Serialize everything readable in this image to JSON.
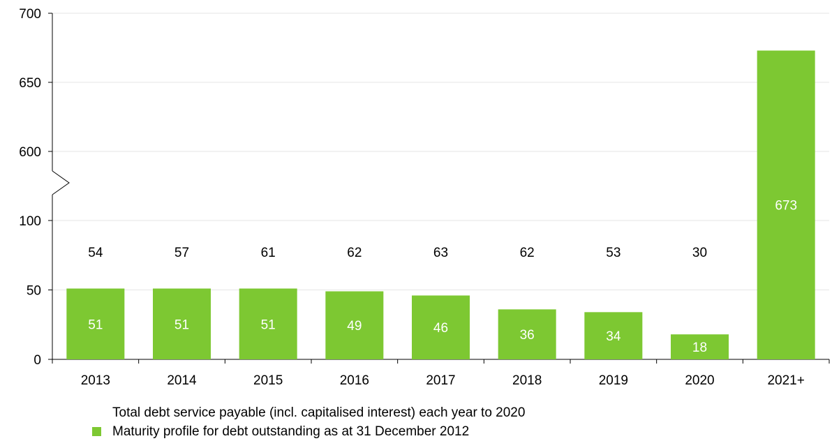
{
  "chart_data": {
    "type": "bar",
    "categories": [
      "2013",
      "2014",
      "2015",
      "2016",
      "2017",
      "2018",
      "2019",
      "2020",
      "2021+"
    ],
    "series": [
      {
        "name": "Maturity profile for debt outstanding as at 31 December 2012",
        "values": [
          51,
          51,
          51,
          49,
          46,
          36,
          34,
          18,
          673
        ],
        "color": "#7dc832"
      },
      {
        "name": "Total debt service payable (incl. capitalised interest) each year to 2020",
        "values": [
          54,
          57,
          61,
          62,
          63,
          62,
          53,
          30,
          null
        ],
        "display": "text-only"
      }
    ],
    "y_ticks": [
      "0",
      "50",
      "100",
      "600",
      "650",
      "700"
    ],
    "y_axis_break": "between 100 and 600",
    "ylim_lower": [
      0,
      100
    ],
    "ylim_upper": [
      600,
      700
    ],
    "grid": true,
    "legend_position": "bottom-left",
    "bar_label_color": "#ffffff",
    "title": "",
    "xlabel": "",
    "ylabel": ""
  }
}
